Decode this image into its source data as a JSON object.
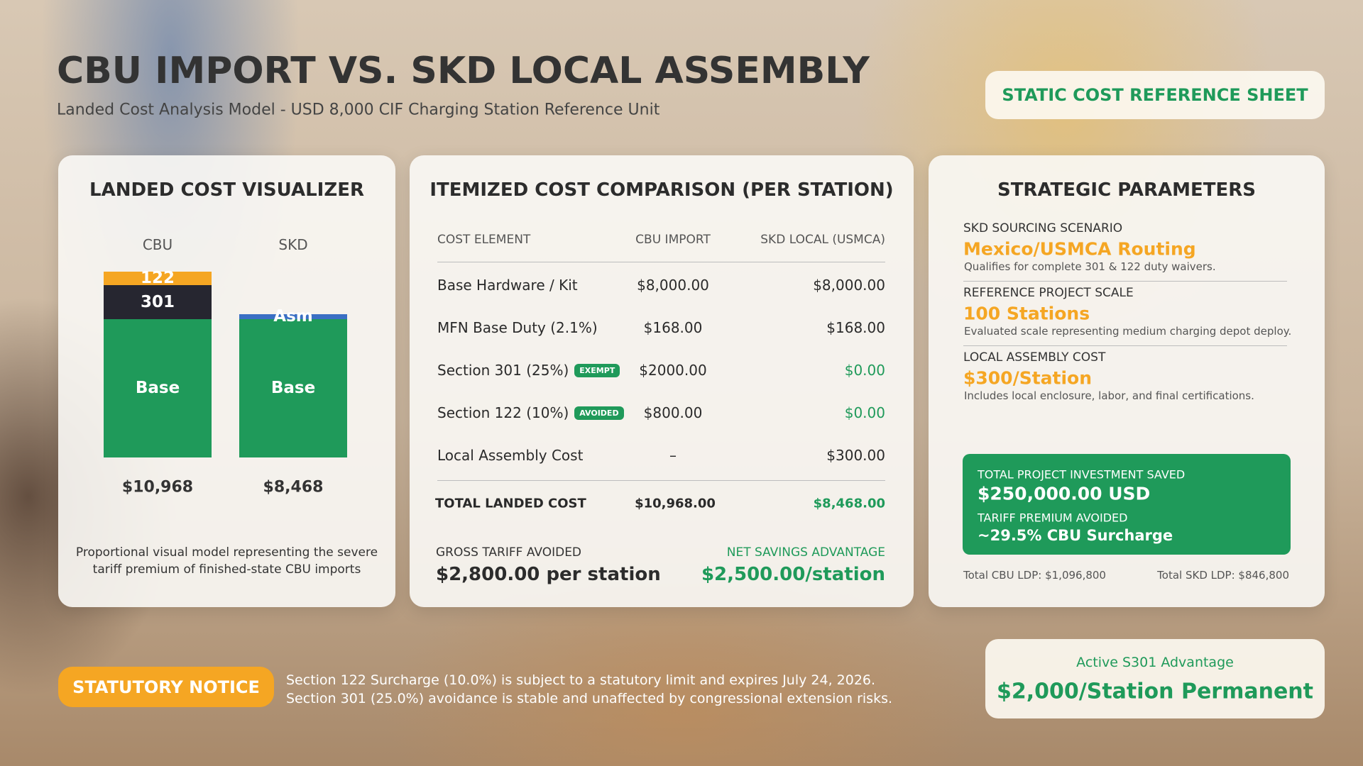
{
  "header": {
    "title": "CBU IMPORT VS. SKD LOCAL ASSEMBLY",
    "subtitle": "Landed Cost Analysis Model - USD 8,000 CIF Charging Station Reference Unit",
    "badge": "STATIC COST REFERENCE SHEET"
  },
  "visualizer": {
    "title": "LANDED COST VISUALIZER",
    "columns": [
      {
        "label": "CBU",
        "total": "$10,968",
        "segments": [
          {
            "label": "Base",
            "value": 8168,
            "color": "#1f9a5a"
          },
          {
            "label": "301",
            "value": 2000,
            "color": "#262630"
          },
          {
            "label": "122",
            "value": 800,
            "color": "#f5a623"
          }
        ]
      },
      {
        "label": "SKD",
        "total": "$8,468",
        "segments": [
          {
            "label": "Base",
            "value": 8168,
            "color": "#1f9a5a"
          },
          {
            "label": "Asm",
            "value": 300,
            "color": "#3a6fc4"
          }
        ]
      }
    ],
    "note": "Proportional visual model representing the severe tariff premium of finished-state CBU imports"
  },
  "comparison": {
    "title": "ITEMIZED COST COMPARISON (PER STATION)",
    "columns": [
      "COST ELEMENT",
      "CBU IMPORT",
      "SKD LOCAL (USMCA)"
    ],
    "rows": [
      {
        "element": "Base Hardware / Kit",
        "cbu": "$8,000.00",
        "skd": "$8,000.00"
      },
      {
        "element": "MFN Base Duty (2.1%)",
        "cbu": "$168.00",
        "skd": "$168.00"
      },
      {
        "element": "Section 301 (25%)",
        "badge": "EXEMPT",
        "cbu": "$2000.00",
        "skd": "$0.00"
      },
      {
        "element": "Section 122 (10%)",
        "badge": "AVOIDED",
        "cbu": "$800.00",
        "skd": "$0.00"
      },
      {
        "element": "Local Assembly Cost",
        "cbu": "–",
        "skd": "$300.00"
      }
    ],
    "total": {
      "element": "TOTAL LANDED COST",
      "cbu": "$10,968.00",
      "skd": "$8,468.00"
    },
    "gross": {
      "label": "GROSS TARIFF AVOIDED",
      "value": "$2,800.00 per station"
    },
    "net": {
      "label": "NET SAVINGS ADVANTAGE",
      "value": "$2,500.00/station"
    }
  },
  "parameters": {
    "title": "STRATEGIC PARAMETERS",
    "items": [
      {
        "label": "SKD SOURCING SCENARIO",
        "value": "Mexico/USMCA Routing",
        "description": "Qualifies for complete 301 & 122 duty waivers."
      },
      {
        "label": "REFERENCE PROJECT SCALE",
        "value": "100 Stations",
        "description": "Evaluated scale representing medium charging depot deploy."
      },
      {
        "label": "LOCAL ASSEMBLY COST",
        "value": "$300/Station",
        "description": "Includes local enclosure, labor, and final certifications."
      }
    ],
    "summary": {
      "saved_label": "TOTAL PROJECT INVESTMENT SAVED",
      "saved_value": "$250,000.00 USD",
      "premium_label": "TARIFF PREMIUM AVOIDED",
      "premium_value": "~29.5% CBU Surcharge"
    },
    "footer": {
      "cbu": "Total CBU LDP: $1,096,800",
      "skd": "Total SKD LDP: $846,800"
    }
  },
  "notice": {
    "label": "STATUTORY NOTICE",
    "lines": [
      "Section 122 Surcharge (10.0%) is subject to a statutory limit and expires July 24, 2026.",
      "Section 301 (25.0%) avoidance is stable and unaffected by congressional extension risks."
    ]
  },
  "advantage": {
    "label": "Active S301 Advantage",
    "value": "$2,000/Station Permanent"
  }
}
